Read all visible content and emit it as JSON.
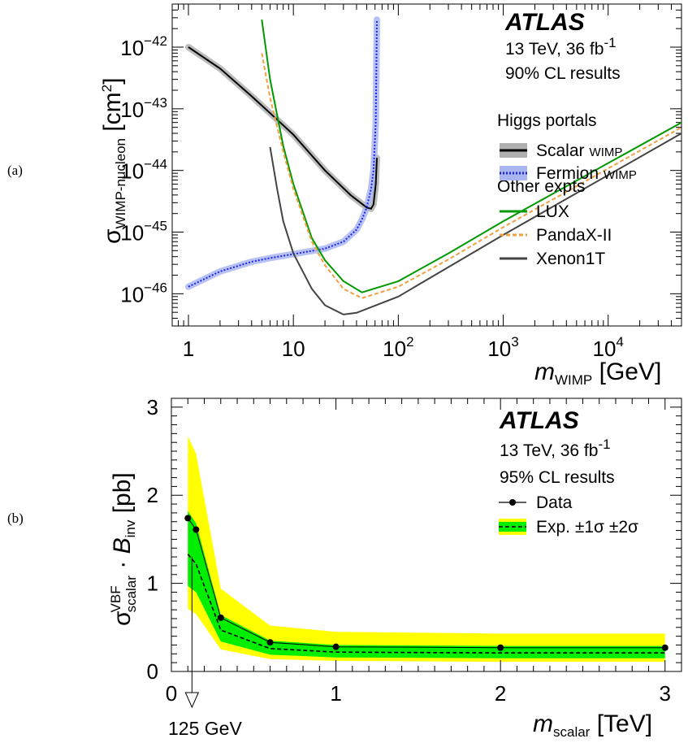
{
  "chart_data": [
    {
      "panel": "(a)",
      "type": "line",
      "xscale": "log",
      "yscale": "log",
      "xlim": [
        0.7,
        50000
      ],
      "ylim": [
        3e-47,
        5e-42
      ],
      "xticks": [
        {
          "value": 1,
          "label": "1",
          "base": "",
          "exp": ""
        },
        {
          "value": 10,
          "label": "10",
          "base": "",
          "exp": ""
        },
        {
          "value": 100,
          "label": "",
          "base": "10",
          "exp": "2"
        },
        {
          "value": 1000,
          "label": "",
          "base": "10",
          "exp": "3"
        },
        {
          "value": 10000,
          "label": "",
          "base": "10",
          "exp": "4"
        }
      ],
      "yticks": [
        {
          "value": 1e-42,
          "base": "10",
          "exp": "−42"
        },
        {
          "value": 1e-43,
          "base": "10",
          "exp": "−43"
        },
        {
          "value": 1e-44,
          "base": "10",
          "exp": "−44"
        },
        {
          "value": 1e-45,
          "base": "10",
          "exp": "−45"
        },
        {
          "value": 1e-46,
          "base": "10",
          "exp": "−46"
        }
      ],
      "xlabel": {
        "m": "m",
        "sub": "WIMP",
        "unit": " [GeV]"
      },
      "ylabel": {
        "sigma": "σ",
        "sub": "WIMP-nucleon",
        "unit": " [cm",
        "sup": "2",
        "close": "]"
      },
      "atlas": "ATLAS",
      "info": [
        "13 TeV, 36 fb",
        "90% CL results"
      ],
      "info_sup": "-1",
      "legend_headers": [
        "Higgs portals",
        "Other expts"
      ],
      "series": [
        {
          "name": "Scalar",
          "small": "WIMP",
          "color": "#000000",
          "band_color": "#b0b0b0",
          "style": "solid",
          "x": [
            1,
            2,
            4,
            6,
            10,
            20,
            35,
            50,
            55,
            58,
            61,
            62.5
          ],
          "y": [
            1e-42,
            4.5e-43,
            1.6e-43,
            8.5e-44,
            3.8e-44,
            1e-44,
            4e-45,
            2.5e-45,
            2.4e-45,
            2.8e-45,
            6e-45,
            1.6e-44
          ]
        },
        {
          "name": "Fermion",
          "small": "WIMP",
          "color": "#2222ee",
          "band_color": "#a9b6f2",
          "style": "dotted",
          "x": [
            1,
            2,
            4,
            6,
            10,
            20,
            30,
            40,
            45,
            50,
            55,
            58,
            61,
            62.5
          ],
          "y": [
            1.3e-46,
            2.3e-46,
            3.3e-46,
            3.8e-46,
            4.4e-46,
            5.4e-46,
            7e-46,
            1.1e-45,
            1.6e-45,
            2.5e-45,
            5e-45,
            1e-44,
            6e-44,
            2.8e-42
          ]
        },
        {
          "name": "LUX",
          "small": "",
          "color": "#009900",
          "style": "solid",
          "x": [
            5,
            6,
            8,
            10,
            15,
            20,
            30,
            45,
            100,
            300,
            1000,
            50000
          ],
          "y": [
            2.8e-42,
            3e-43,
            2.5e-44,
            6e-45,
            8e-46,
            3.5e-46,
            1.6e-46,
            1.05e-46,
            1.6e-46,
            4.5e-46,
            1.5e-45,
            6e-44
          ]
        },
        {
          "name": "PandaX-II",
          "small": "",
          "color": "#f0a040",
          "style": "dashed",
          "x": [
            5,
            6,
            8,
            10,
            15,
            20,
            30,
            45,
            100,
            300,
            1000,
            50000
          ],
          "y": [
            8e-43,
            1.5e-43,
            2e-44,
            5e-45,
            7e-46,
            2.9e-46,
            1.2e-46,
            8.5e-47,
            1.3e-46,
            3.6e-46,
            1.2e-45,
            5e-44
          ]
        },
        {
          "name": "Xenon1T",
          "small": "",
          "color": "#444444",
          "style": "solid",
          "x": [
            6,
            7,
            8,
            10,
            15,
            20,
            30,
            40,
            100,
            300,
            1000,
            50000
          ],
          "y": [
            2.4e-44,
            5e-45,
            1.5e-45,
            4.5e-46,
            1.2e-46,
            6.5e-47,
            4.6e-47,
            4.9e-47,
            9e-47,
            2.7e-46,
            9e-46,
            4e-44
          ]
        }
      ]
    },
    {
      "panel": "(b)",
      "type": "line",
      "xlim": [
        0,
        3.1
      ],
      "ylim": [
        0,
        3.1
      ],
      "xticks": [
        0,
        1,
        2,
        3
      ],
      "yticks": [
        0,
        1,
        2,
        3
      ],
      "xlabel": {
        "m": "m",
        "sub": "scalar",
        "unit": " [TeV]"
      },
      "ylabel": {
        "sigma": "σ",
        "sup": "VBF",
        "sub": "scalar",
        "dot": " · ",
        "b": "B",
        "bsub": "inv",
        "unit": " [pb]"
      },
      "atlas": "ATLAS",
      "info": [
        "13 TeV, 36 fb",
        "95% CL results"
      ],
      "info_sup": "-1",
      "annotation": "125 GeV",
      "annotation_x": 0.125,
      "x": [
        0.1,
        0.15,
        0.3,
        0.6,
        1.0,
        2.0,
        3.0
      ],
      "observed": [
        1.74,
        1.61,
        0.61,
        0.33,
        0.28,
        0.27,
        0.27
      ],
      "expected": [
        1.33,
        1.22,
        0.47,
        0.26,
        0.22,
        0.21,
        0.21
      ],
      "band_1sigma": {
        "low": [
          0.97,
          0.9,
          0.34,
          0.19,
          0.16,
          0.15,
          0.15
        ],
        "high": [
          1.82,
          1.68,
          0.64,
          0.35,
          0.3,
          0.29,
          0.29
        ]
      },
      "band_2sigma": {
        "low": [
          0.71,
          0.65,
          0.25,
          0.14,
          0.12,
          0.11,
          0.11
        ],
        "high": [
          2.67,
          2.47,
          0.94,
          0.52,
          0.45,
          0.43,
          0.43
        ]
      },
      "legend": {
        "data": "Data",
        "exp": "Exp. ±1σ ±2σ"
      },
      "colors": {
        "band1": "#00ee00",
        "band2": "#ffff00",
        "line": "#000000"
      }
    }
  ]
}
